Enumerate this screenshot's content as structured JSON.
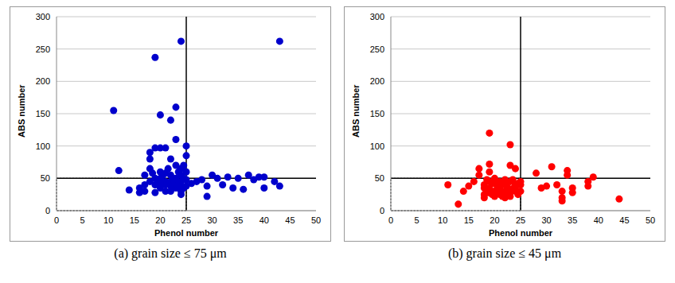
{
  "chart_data": [
    {
      "type": "scatter",
      "title": "(a)  grain size  ≤  75  μm",
      "x_label": "Phenol number",
      "y_label": "ABS number",
      "xlim": [
        0,
        50
      ],
      "ylim": [
        0,
        300
      ],
      "xticks": [
        0,
        5,
        10,
        15,
        20,
        25,
        30,
        35,
        40,
        45,
        50
      ],
      "yticks": [
        0,
        50,
        100,
        150,
        200,
        250,
        300
      ],
      "grid": true,
      "color": "#0000cc",
      "marker": "circle",
      "reference_lines": {
        "x": 25,
        "y": 50
      },
      "x": [
        11,
        12,
        14,
        16,
        17,
        17,
        18,
        18,
        18,
        19,
        19,
        19,
        19,
        20,
        20,
        20,
        20,
        21,
        21,
        21,
        22,
        22,
        22,
        22,
        23,
        23,
        23,
        23,
        23,
        24,
        24,
        24,
        24,
        24,
        24,
        24,
        25,
        25,
        25,
        25,
        25,
        26,
        27,
        28,
        29,
        29,
        30,
        31,
        32,
        33,
        34,
        35,
        36,
        37,
        38,
        39,
        40,
        40,
        42,
        43,
        43,
        16,
        17,
        18,
        19,
        20,
        21,
        22,
        23,
        21,
        22,
        20,
        24.5,
        24.5,
        24.5,
        23.5,
        22.5,
        21.5,
        20.5,
        19.5,
        18.5
      ],
      "y": [
        155,
        62,
        32,
        28,
        40,
        55,
        65,
        80,
        90,
        237,
        97,
        50,
        28,
        97,
        148,
        60,
        35,
        97,
        45,
        30,
        140,
        80,
        55,
        38,
        160,
        110,
        70,
        50,
        35,
        262,
        65,
        55,
        45,
        38,
        30,
        25,
        100,
        85,
        60,
        48,
        38,
        42,
        45,
        48,
        22,
        38,
        55,
        50,
        40,
        52,
        35,
        50,
        33,
        55,
        48,
        52,
        35,
        52,
        45,
        262,
        38,
        35,
        30,
        45,
        40,
        50,
        40,
        30,
        42,
        58,
        45,
        42,
        70,
        50,
        35,
        60,
        48,
        65,
        55,
        45,
        58
      ]
    },
    {
      "type": "scatter",
      "title": "(b)  grain size  ≤  45  μm",
      "x_label": "Phenol number",
      "y_label": "ABS number",
      "xlim": [
        0,
        50
      ],
      "ylim": [
        0,
        300
      ],
      "xticks": [
        0,
        5,
        10,
        15,
        20,
        25,
        30,
        35,
        40,
        45,
        50
      ],
      "yticks": [
        0,
        50,
        100,
        150,
        200,
        250,
        300
      ],
      "grid": true,
      "color": "#ff0000",
      "marker": "circle",
      "reference_lines": {
        "x": 25,
        "y": 50
      },
      "x": [
        11,
        13,
        14,
        15,
        16,
        17,
        17,
        18,
        18,
        18,
        19,
        19,
        19,
        19,
        19,
        20,
        20,
        20,
        21,
        21,
        21,
        22,
        22,
        22,
        23,
        23,
        23,
        23,
        24,
        24,
        24,
        25,
        25,
        28,
        29,
        30,
        31,
        32,
        33,
        33,
        33,
        34,
        34,
        35,
        35,
        38,
        38,
        39,
        44,
        18.5,
        19.5,
        20.5,
        21.5,
        22.5,
        23.5,
        24.5,
        18.5,
        19.5,
        20.5,
        21.5,
        22.5,
        23.5,
        24.5,
        18,
        19,
        20,
        21,
        22,
        23,
        24,
        25
      ],
      "y": [
        40,
        10,
        30,
        38,
        45,
        55,
        65,
        40,
        25,
        20,
        120,
        72,
        60,
        45,
        35,
        50,
        30,
        22,
        45,
        35,
        25,
        40,
        30,
        20,
        102,
        70,
        45,
        28,
        65,
        40,
        30,
        45,
        30,
        58,
        35,
        38,
        68,
        40,
        30,
        20,
        15,
        62,
        55,
        35,
        28,
        45,
        38,
        52,
        18,
        48,
        42,
        38,
        44,
        36,
        48,
        42,
        28,
        25,
        32,
        22,
        26,
        34,
        25,
        35,
        28,
        42,
        30,
        48,
        22,
        35,
        40
      ]
    }
  ]
}
